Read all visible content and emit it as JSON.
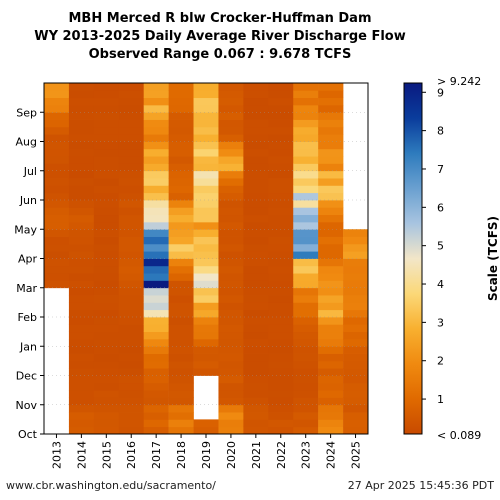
{
  "chart_data": {
    "type": "heatmap",
    "title_lines": [
      "MBH Merced R blw Crocker-Huffman Dam",
      "WY 2013-2025 Daily Average River Discharge Flow",
      "Observed Range 0.067 : 9.678 TCFS"
    ],
    "x_categories": [
      "2013",
      "2014",
      "2015",
      "2016",
      "2017",
      "2018",
      "2019",
      "2020",
      "2021",
      "2022",
      "2023",
      "2024",
      "2025"
    ],
    "y_month_labels": [
      "Oct",
      "Nov",
      "Dec",
      "Jan",
      "Feb",
      "Mar",
      "Apr",
      "May",
      "Jun",
      "Jul",
      "Aug",
      "Sep"
    ],
    "colorbar": {
      "label": "Scale (TCFS)",
      "min": 0.089,
      "max": 9.242,
      "ticks": [
        1,
        2,
        3,
        4,
        5,
        6,
        7,
        8,
        9
      ],
      "top_label": "> 9.242",
      "bottom_label": "< 0.089",
      "colors": [
        "#c84a00",
        "#e06a00",
        "#f08a10",
        "#f8b030",
        "#fbd878",
        "#f2e6c8",
        "#a8c4e0",
        "#6aa0d0",
        "#2e7bbd",
        "#0a3c9c",
        "#0a1a80"
      ]
    },
    "missing_ranges": [
      {
        "year": "2013",
        "from_month": 0,
        "to_month": 5
      },
      {
        "year": "2019",
        "from_month": 0.5,
        "to_month": 0.95
      },
      {
        "year": "2025",
        "from_month": 6.9,
        "to_month": 12
      }
    ],
    "water_year_monthly_flow_tcfs": {
      "2013": [
        null,
        null,
        null,
        null,
        null,
        0.3,
        0.2,
        0.6,
        0.3,
        0.3,
        0.4,
        1.8
      ],
      "2014": [
        0.6,
        0.3,
        0.2,
        0.2,
        0.2,
        0.25,
        0.3,
        0.5,
        0.2,
        0.2,
        0.2,
        0.2
      ],
      "2015": [
        0.5,
        0.3,
        0.2,
        0.2,
        0.2,
        0.2,
        0.2,
        0.2,
        0.2,
        0.2,
        0.2,
        0.2
      ],
      "2016": [
        0.4,
        0.3,
        0.2,
        0.2,
        0.3,
        0.5,
        0.4,
        0.4,
        0.3,
        0.2,
        0.2,
        0.2
      ],
      "2017": [
        0.8,
        0.5,
        0.8,
        2.0,
        4.0,
        9.4,
        7.5,
        5.0,
        3.0,
        2.5,
        1.8,
        2.5
      ],
      "2018": [
        1.5,
        0.4,
        0.3,
        0.3,
        0.3,
        0.4,
        3.0,
        2.5,
        0.8,
        0.6,
        0.5,
        1.0
      ],
      "2019": [
        0.8,
        null,
        0.4,
        1.0,
        2.5,
        4.5,
        3.0,
        2.5,
        4.0,
        3.0,
        2.8,
        3.0
      ],
      "2020": [
        2.0,
        0.5,
        0.4,
        0.4,
        0.4,
        0.4,
        0.4,
        0.4,
        0.5,
        2.5,
        0.6,
        0.5
      ],
      "2021": [
        0.5,
        0.3,
        0.2,
        0.2,
        0.2,
        0.2,
        0.2,
        0.2,
        0.2,
        0.2,
        0.2,
        0.2
      ],
      "2022": [
        0.4,
        0.2,
        0.2,
        0.2,
        0.2,
        0.2,
        0.2,
        0.2,
        0.2,
        0.2,
        0.2,
        0.2
      ],
      "2023": [
        0.5,
        0.3,
        0.3,
        0.4,
        1.0,
        2.5,
        6.0,
        5.5,
        4.5,
        3.5,
        2.5,
        1.5
      ],
      "2024": [
        2.0,
        0.8,
        0.6,
        1.5,
        2.5,
        2.0,
        1.0,
        1.0,
        3.0,
        2.0,
        1.5,
        1.0
      ],
      "2025": [
        0.6,
        0.5,
        0.6,
        0.8,
        1.5,
        1.5,
        2.0,
        null,
        null,
        null,
        null,
        null
      ]
    }
  },
  "footer": {
    "left": "www.cbr.washington.edu/sacramento/",
    "right": "27 Apr 2025 15:45:36 PDT"
  }
}
